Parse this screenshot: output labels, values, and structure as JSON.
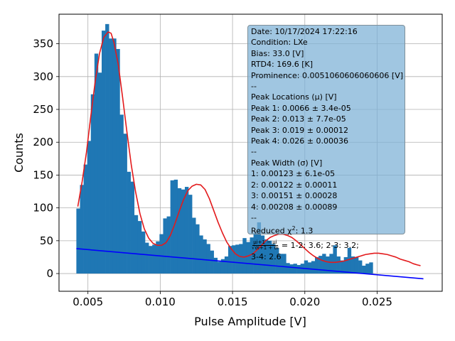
{
  "chart_data": {
    "type": "bar",
    "xlabel": "Pulse Amplitude [V]",
    "ylabel": "Counts",
    "xlim": [
      0.003,
      0.0295
    ],
    "ylim": [
      -27,
      395
    ],
    "grid": true,
    "x_ticks": [
      0.005,
      0.01,
      0.015,
      0.02,
      0.025
    ],
    "x_tick_labels": [
      "0.005",
      "0.010",
      "0.015",
      "0.020",
      "0.025"
    ],
    "y_ticks": [
      0,
      50,
      100,
      150,
      200,
      250,
      300,
      350
    ],
    "y_tick_labels": [
      "0",
      "50",
      "100",
      "150",
      "200",
      "250",
      "300",
      "350"
    ],
    "histogram": {
      "color": "#1f77b4",
      "bin_start": 0.0042,
      "bin_width": 0.00025,
      "counts": [
        99,
        135,
        166,
        202,
        273,
        335,
        306,
        370,
        380,
        358,
        358,
        342,
        242,
        213,
        155,
        140,
        89,
        80,
        64,
        47,
        42,
        44,
        49,
        60,
        84,
        87,
        142,
        143,
        130,
        128,
        132,
        120,
        85,
        75,
        58,
        52,
        45,
        35,
        24,
        18,
        22,
        26,
        42,
        43,
        44,
        45,
        54,
        48,
        55,
        62,
        78,
        58,
        52,
        50,
        45,
        39,
        30,
        30,
        16,
        14,
        15,
        13,
        15,
        20,
        17,
        19,
        25,
        27,
        30,
        26,
        30,
        43,
        26,
        20,
        25,
        39,
        26,
        25,
        20,
        12,
        15,
        17
      ]
    },
    "series": [
      {
        "color": "#e31a1c",
        "x": [
          0.0043,
          0.0046,
          0.0049,
          0.0052,
          0.0055,
          0.0058,
          0.0061,
          0.0064,
          0.0066,
          0.0068,
          0.0071,
          0.0074,
          0.0077,
          0.008,
          0.0083,
          0.0086,
          0.0089,
          0.0092,
          0.0095,
          0.0098,
          0.0101,
          0.0104,
          0.0107,
          0.011,
          0.0113,
          0.0116,
          0.0119,
          0.0122,
          0.0125,
          0.0128,
          0.0131,
          0.0134,
          0.0137,
          0.014,
          0.0143,
          0.0146,
          0.0149,
          0.0152,
          0.0155,
          0.0158,
          0.0161,
          0.0164,
          0.0167,
          0.017,
          0.0173,
          0.0176,
          0.0179,
          0.0182,
          0.0185,
          0.0188,
          0.0191,
          0.0194,
          0.0197,
          0.02,
          0.0203,
          0.0206,
          0.0209,
          0.0212,
          0.0215,
          0.0218,
          0.0221,
          0.0224,
          0.0227,
          0.023,
          0.0233,
          0.0236,
          0.0239,
          0.0242,
          0.0245,
          0.0248,
          0.0251,
          0.0254,
          0.0257,
          0.026,
          0.0263,
          0.0266,
          0.0269,
          0.0272,
          0.0275,
          0.0278,
          0.028
        ],
        "y": [
          102,
          140,
          185,
          240,
          292,
          335,
          360,
          368,
          366,
          352,
          318,
          268,
          215,
          165,
          124,
          91,
          68,
          54,
          46,
          43,
          43,
          47,
          58,
          75,
          94,
          112,
          126,
          133,
          136,
          135,
          128,
          114,
          96,
          78,
          62,
          48,
          38,
          30,
          26,
          25,
          27,
          30,
          36,
          43,
          50,
          55,
          58,
          60,
          60,
          58,
          55,
          50,
          44,
          38,
          32,
          27,
          23,
          20,
          18,
          17,
          17,
          18,
          19,
          21,
          23,
          25,
          27,
          29,
          30,
          31,
          31,
          30,
          29,
          27,
          25,
          22,
          20,
          18,
          15,
          13,
          12
        ]
      },
      {
        "color": "#0000ff",
        "x": [
          0.0042,
          0.0282
        ],
        "y": [
          38,
          -8
        ]
      }
    ]
  },
  "info_box": {
    "lines": [
      "Date: 10/17/2024 17:22:16",
      "Condition: LXe",
      "Bias: 33.0 [V]",
      "RTD4: 169.6 [K]",
      "Prominence: 0.0051060606060606 [V]",
      "--",
      "Peak Locations (μ) [V]",
      "Peak 1: 0.0066 ± 3.4e-05",
      "Peak 2: 0.013 ± 7.7e-05",
      "Peak 3: 0.019 ± 0.00012",
      "Peak 4: 0.026 ± 0.00036",
      "--",
      "Peak Width (σ) [V]",
      "1: 0.00123 ± 6.1e-05",
      "2: 0.00122 ± 0.00011",
      "3: 0.00151 ± 0.00028",
      "4: 0.00208 ± 0.00089",
      "--"
    ],
    "chi2_prefix": "Reduced χ",
    "chi2_exp": "2",
    "chi2_value": ": 1.3",
    "ratio_num": "μi+1 − μi",
    "ratio_den": "√σi+1 + σi",
    "ratio_text": " =  1-2: 3.6; 2-3: 3.2;",
    "ratio_tail": " 3-4: 2.6"
  }
}
